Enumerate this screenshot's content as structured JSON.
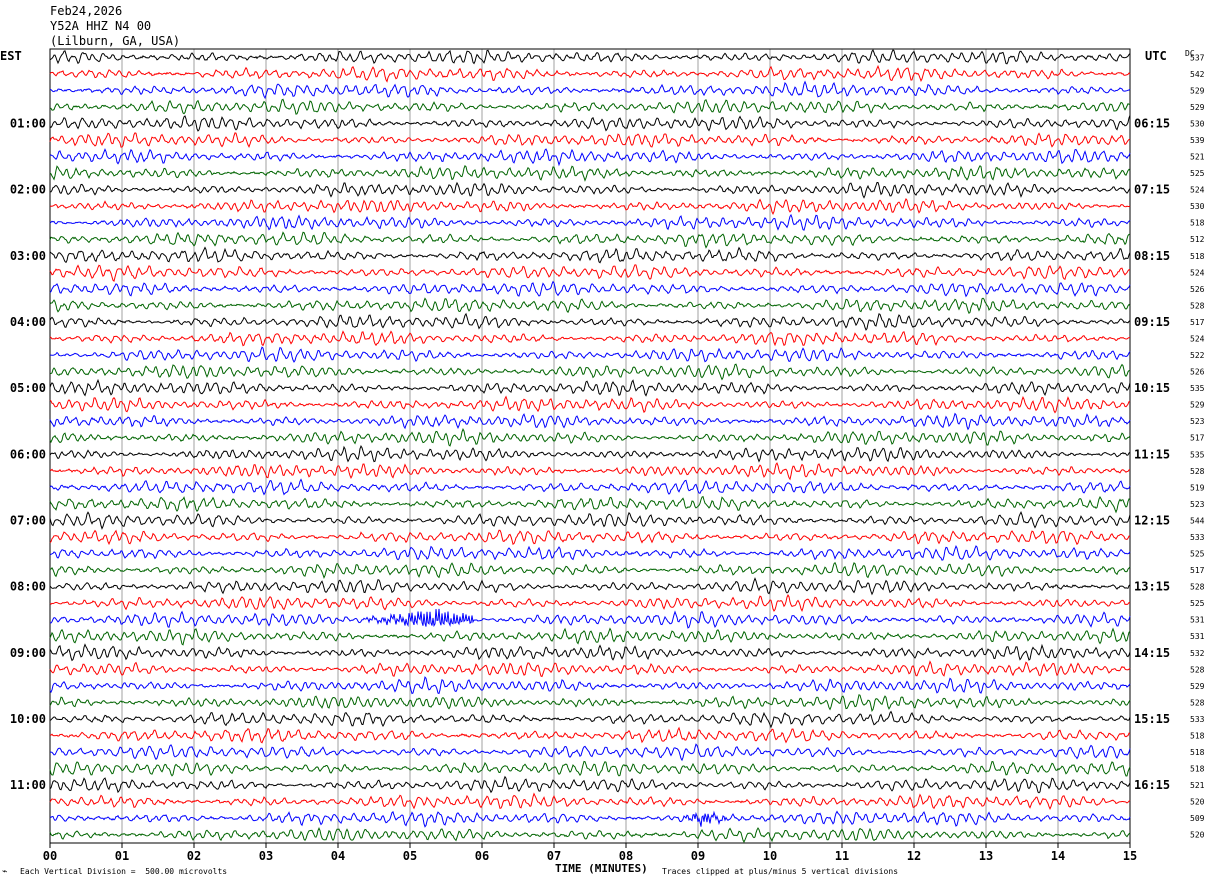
{
  "header": {
    "date": "Feb24,2026",
    "station": "Y52A HHZ N4 00",
    "location": "(Lilburn, GA, USA)"
  },
  "left_timezone": "EST",
  "right_timezone": "UTC",
  "dc_label": "DC",
  "footer": {
    "scale_note": "Each Vertical Division =  500.00 microvolts",
    "xlabel": "TIME (MINUTES)",
    "clip_note": "Traces clipped at plus/minus 5 vertical divisions"
  },
  "colors": {
    "trace_cycle": [
      "#000000",
      "#ff0000",
      "#0000ff",
      "#006400"
    ],
    "grid": "#a0a0a0"
  },
  "chart_data": {
    "type": "line",
    "title": "",
    "xlabel": "TIME (MINUTES)",
    "x_ticks": [
      "00",
      "01",
      "02",
      "03",
      "04",
      "05",
      "06",
      "07",
      "08",
      "09",
      "10",
      "11",
      "12",
      "13",
      "14",
      "15"
    ],
    "xlim": [
      0,
      15
    ],
    "rows_per_hour": 4,
    "left_hour_labels": [
      "01:00",
      "02:00",
      "03:00",
      "04:00",
      "05:00",
      "06:00",
      "07:00",
      "08:00",
      "09:00",
      "10:00",
      "11:00"
    ],
    "right_hour_labels": [
      "06:15",
      "07:15",
      "08:15",
      "09:15",
      "10:15",
      "11:15",
      "12:15",
      "13:15",
      "14:15",
      "15:15",
      "16:15"
    ],
    "dc_offsets": [
      537,
      542,
      529,
      529,
      530,
      539,
      521,
      525,
      524,
      530,
      518,
      512,
      518,
      524,
      526,
      528,
      517,
      524,
      522,
      526,
      535,
      529,
      523,
      517,
      535,
      528,
      519,
      523,
      544,
      533,
      525,
      517,
      528,
      525,
      531,
      531,
      532,
      528,
      529,
      528,
      533,
      518,
      518,
      518,
      521,
      520,
      509,
      520
    ],
    "events": [
      {
        "row": 34,
        "start_min": 4.4,
        "end_min": 5.9,
        "peak_min": 5.35,
        "amplitude": "high"
      },
      {
        "row": 46,
        "start_min": 8.8,
        "end_min": 9.5,
        "peak_min": 9.1,
        "amplitude": "medium"
      }
    ]
  }
}
